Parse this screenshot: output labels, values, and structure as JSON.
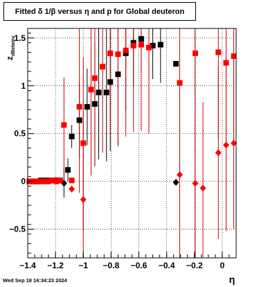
{
  "footer": "Wed Sep 18 16:34:23 2024",
  "colors": {
    "series_black": "#000000",
    "series_red": "#ff0000",
    "errbar_red": "#cc0000",
    "axis": "#000000",
    "grid": "#000000"
  },
  "chart_data": {
    "type": "scatter",
    "title": "Fitted δ 1/β versus η and p for Global deuteron",
    "xlabel": "η",
    "ylabel": "z_{dBetainv}",
    "xlim": [
      -1.4,
      0.1
    ],
    "ylim": [
      -0.8,
      1.6
    ],
    "x_ticks": [
      -1.4,
      -1.2,
      -1,
      -0.8,
      -0.6,
      -0.4,
      -0.2,
      0
    ],
    "x_tick_labels": [
      "−1.4",
      "−1.2",
      "−1",
      "−0.8",
      "−0.6",
      "−0.4",
      "−0.2",
      "0"
    ],
    "y_ticks": [
      -0.5,
      0,
      0.5,
      1,
      1.5
    ],
    "y_tick_labels": [
      "−0.5",
      "0",
      "0.5",
      "1",
      "1.5"
    ],
    "grid": true,
    "series": [
      {
        "marker": "square",
        "color": "black",
        "points": [
          {
            "x": -1.388,
            "y": 0.0,
            "err": 0.0
          },
          {
            "x": -1.36,
            "y": 0.0,
            "err": 0.0
          },
          {
            "x": -1.332,
            "y": 0.0,
            "err": 0.0
          },
          {
            "x": -1.305,
            "y": 0.01,
            "err": 0.0
          },
          {
            "x": -1.277,
            "y": 0.01,
            "err": 0.0
          },
          {
            "x": -1.25,
            "y": 0.01,
            "err": 0.0
          },
          {
            "x": -1.222,
            "y": 0.01,
            "err": 0.0
          },
          {
            "x": -1.194,
            "y": 0.01,
            "err": 0.0
          },
          {
            "x": -1.167,
            "y": 0.01,
            "err": 0.0
          },
          {
            "x": -1.111,
            "y": 0.12,
            "err": 0.12
          },
          {
            "x": -1.083,
            "y": 0.47,
            "err": 0.12
          },
          {
            "x": -1.028,
            "y": 0.64,
            "err": 0.4
          },
          {
            "x": -0.972,
            "y": 0.78,
            "err": 0.4
          },
          {
            "x": -0.917,
            "y": 0.81,
            "err": 0.65
          },
          {
            "x": -0.889,
            "y": 0.93,
            "err": 0.7
          },
          {
            "x": -0.833,
            "y": 0.93,
            "err": 0.72
          },
          {
            "x": -0.806,
            "y": 1.04,
            "err": 0.72
          },
          {
            "x": -0.75,
            "y": 1.12,
            "err": 0.75
          },
          {
            "x": -0.694,
            "y": 1.34,
            "err": 0.6
          },
          {
            "x": -0.639,
            "y": 1.45,
            "err": 0.45
          },
          {
            "x": -0.583,
            "y": 1.49,
            "err": 0.35
          },
          {
            "x": -0.5,
            "y": 1.42,
            "err": 0.35
          },
          {
            "x": -0.444,
            "y": 1.43,
            "err": 0.4
          },
          {
            "x": -0.333,
            "y": 1.23,
            "err": 0.0
          }
        ]
      },
      {
        "marker": "diamond",
        "color": "black",
        "points": [
          {
            "x": -1.139,
            "y": -0.02,
            "err": 0.15
          },
          {
            "x": -0.333,
            "y": -0.01,
            "err": 0.0
          }
        ]
      },
      {
        "marker": "square",
        "color": "red",
        "points": [
          {
            "x": -1.388,
            "y": 0.0,
            "err": 0.0
          },
          {
            "x": -1.36,
            "y": 0.0,
            "err": 0.0
          },
          {
            "x": -1.332,
            "y": 0.0,
            "err": 0.0
          },
          {
            "x": -1.305,
            "y": 0.0,
            "err": 0.0
          },
          {
            "x": -1.277,
            "y": 0.0,
            "err": 0.0
          },
          {
            "x": -1.25,
            "y": 0.0,
            "err": 0.0
          },
          {
            "x": -1.222,
            "y": 0.01,
            "err": 0.0
          },
          {
            "x": -1.194,
            "y": 0.0,
            "err": 0.0
          },
          {
            "x": -1.167,
            "y": 0.01,
            "err": 0.0
          },
          {
            "x": -1.139,
            "y": 0.59,
            "err": 0.5
          },
          {
            "x": -1.083,
            "y": 0.01,
            "err": 0.0
          },
          {
            "x": -1.028,
            "y": 0.78,
            "err": 0.9
          },
          {
            "x": -1.0,
            "y": 0.4,
            "err": 0.9
          },
          {
            "x": -0.944,
            "y": 0.96,
            "err": 0.9
          },
          {
            "x": -0.917,
            "y": 1.08,
            "err": 0.9
          },
          {
            "x": -0.861,
            "y": 1.2,
            "err": 0.9
          },
          {
            "x": -0.806,
            "y": 1.34,
            "err": 0.9
          },
          {
            "x": -0.75,
            "y": 1.33,
            "err": 0.9
          },
          {
            "x": -0.694,
            "y": 1.37,
            "err": 0.9
          },
          {
            "x": -0.639,
            "y": 1.42,
            "err": 0.9
          },
          {
            "x": -0.583,
            "y": 1.43,
            "err": 0.9
          },
          {
            "x": -0.528,
            "y": 1.4,
            "err": 0.9
          },
          {
            "x": -0.306,
            "y": 1.03,
            "err": 0.9
          },
          {
            "x": -0.194,
            "y": 1.34,
            "err": 0.9
          },
          {
            "x": -0.028,
            "y": 1.35,
            "err": 0.9
          },
          {
            "x": 0.028,
            "y": 1.24,
            "err": 0.9
          },
          {
            "x": 0.083,
            "y": 1.31,
            "err": 0.9
          }
        ]
      },
      {
        "marker": "diamond",
        "color": "red",
        "points": [
          {
            "x": -1.083,
            "y": -0.08,
            "err": 0.0
          },
          {
            "x": -1.0,
            "y": -0.19,
            "err": 0.9
          },
          {
            "x": -0.306,
            "y": 0.07,
            "err": 0.9
          },
          {
            "x": -0.194,
            "y": -0.02,
            "err": 0.9
          },
          {
            "x": -0.139,
            "y": -0.07,
            "err": 0.9
          },
          {
            "x": -0.028,
            "y": 0.3,
            "err": 0.9
          },
          {
            "x": 0.028,
            "y": 0.38,
            "err": 0.9
          },
          {
            "x": 0.083,
            "y": 0.4,
            "err": 0.9
          }
        ]
      }
    ]
  }
}
